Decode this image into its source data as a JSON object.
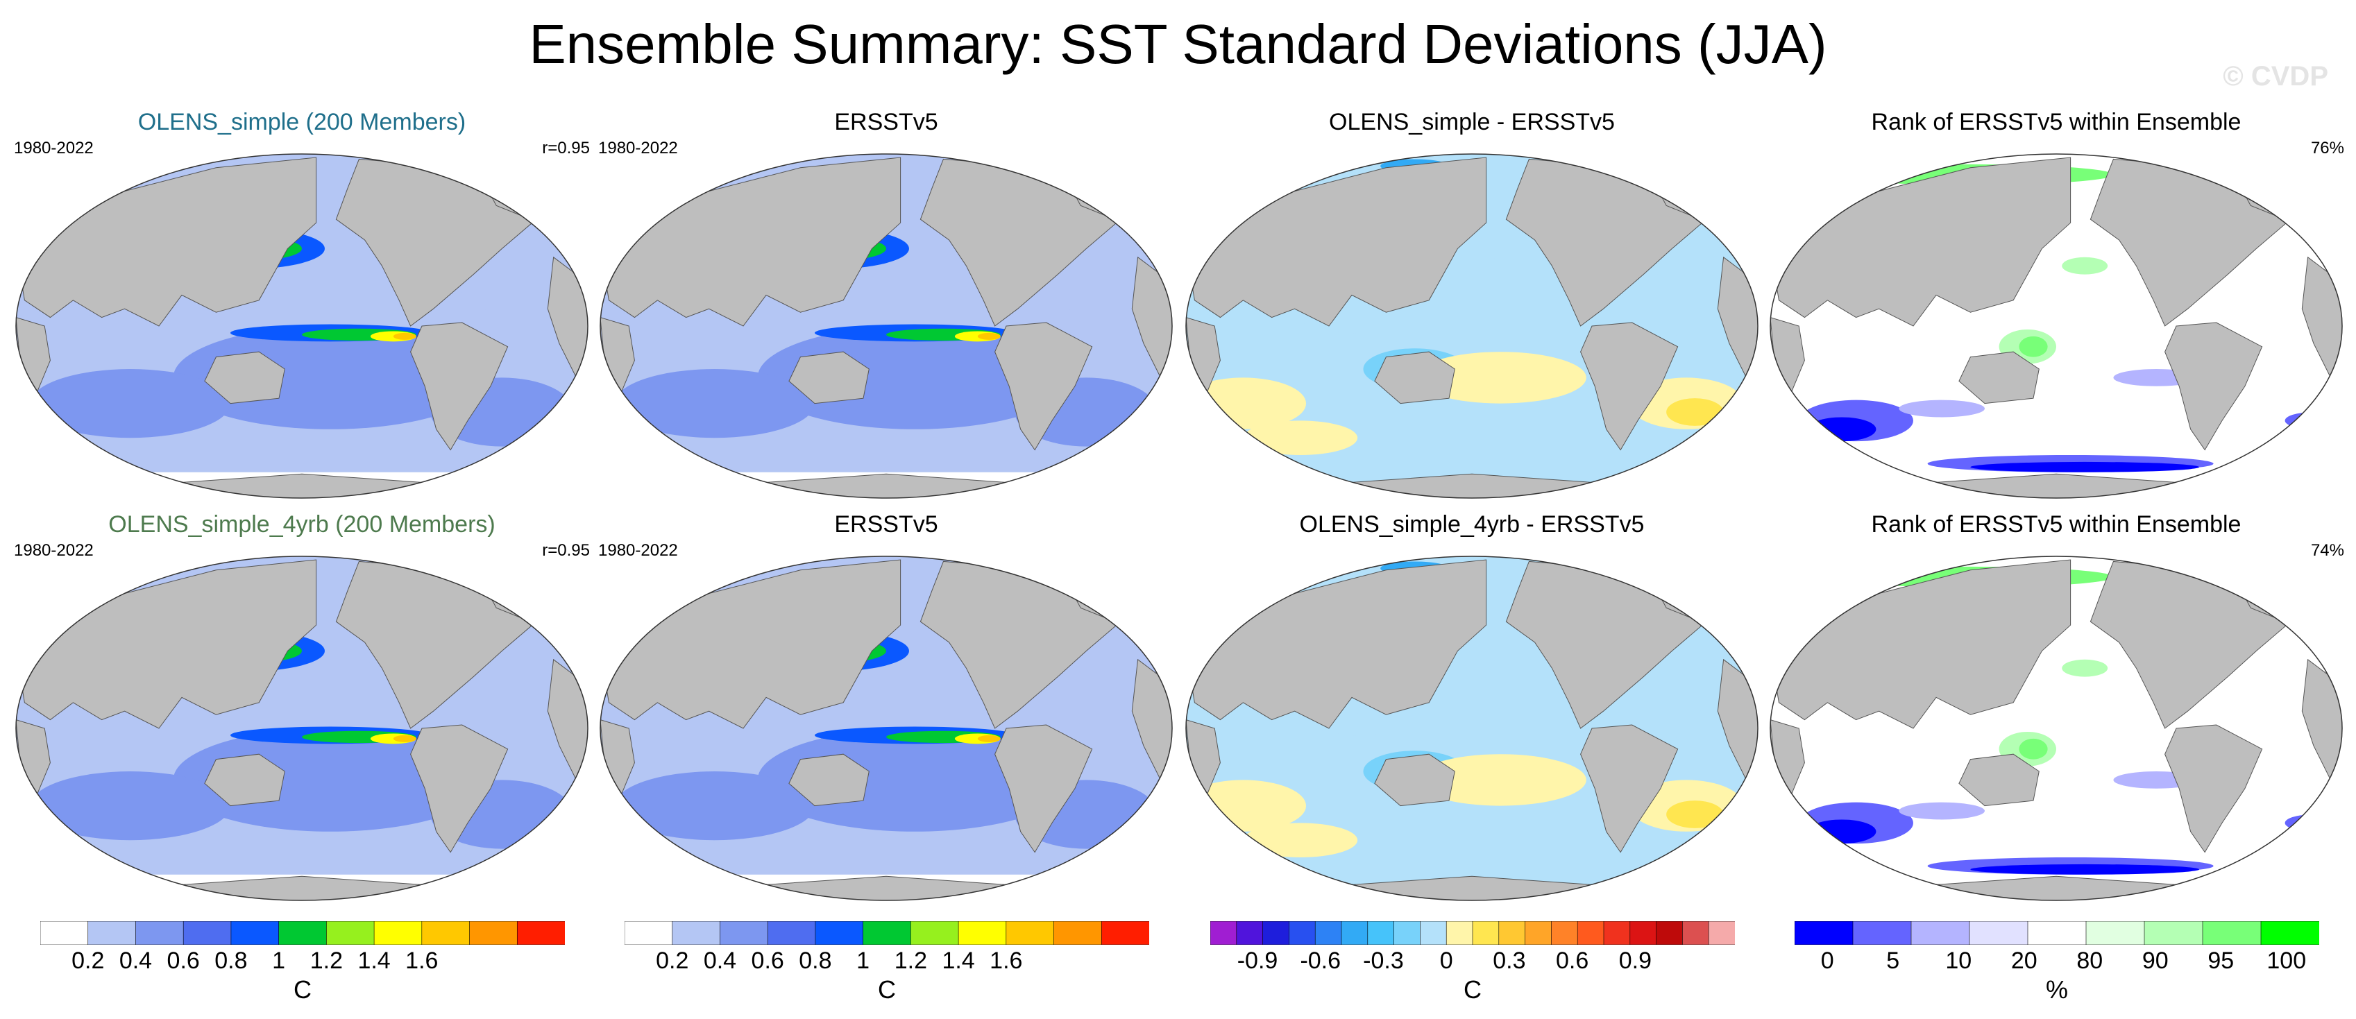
{
  "title": "Ensemble Summary: SST Standard Deviations (JJA)",
  "watermark": "© CVDP",
  "palettes": {
    "sst": [
      "#ffffff",
      "#b4c6f4",
      "#7d97f0",
      "#4f6df0",
      "#0a58ff",
      "#00c832",
      "#96f01e",
      "#ffff00",
      "#ffc800",
      "#ff9600",
      "#ff1e00"
    ],
    "diff": [
      "#a01ed2",
      "#5014dc",
      "#1e1edc",
      "#2850f0",
      "#2d82f5",
      "#32aaf5",
      "#46c3fa",
      "#78d2fa",
      "#b4e1fa",
      "#fff5aa",
      "#ffe650",
      "#ffc832",
      "#ffa528",
      "#ff8228",
      "#ff5a1e",
      "#f0321e",
      "#dc1414",
      "#be0a0a",
      "#dc5050",
      "#f5aaaa"
    ],
    "rank": [
      "#0000ff",
      "#6464ff",
      "#b4b4ff",
      "#e1e1ff",
      "#ffffff",
      "#e1ffe1",
      "#b4ffb4",
      "#78ff78",
      "#00ff00"
    ],
    "land": "#bebebe",
    "title_blue": "#1f6f8b",
    "title_green": "#4d7a4d"
  },
  "panels": [
    {
      "title": "OLENS_simple (200 Members)",
      "title_color": "#1f6f8b",
      "left": "1980-2022",
      "right": "r=0.95",
      "kind": "sst"
    },
    {
      "title": "ERSSTv5",
      "title_color": "#000000",
      "left": "1980-2022",
      "right": "",
      "kind": "sst"
    },
    {
      "title": "OLENS_simple - ERSSTv5",
      "title_color": "#000000",
      "left": "",
      "right": "",
      "kind": "diff"
    },
    {
      "title": "Rank of ERSSTv5 within Ensemble",
      "title_color": "#000000",
      "left": "",
      "right": "76%",
      "kind": "rank"
    },
    {
      "title": "OLENS_simple_4yrb (200 Members)",
      "title_color": "#4d7a4d",
      "left": "1980-2022",
      "right": "r=0.95",
      "kind": "sst"
    },
    {
      "title": "ERSSTv5",
      "title_color": "#000000",
      "left": "1980-2022",
      "right": "",
      "kind": "sst"
    },
    {
      "title": "OLENS_simple_4yrb - ERSSTv5",
      "title_color": "#000000",
      "left": "",
      "right": "",
      "kind": "diff"
    },
    {
      "title": "Rank of ERSSTv5 within Ensemble",
      "title_color": "#000000",
      "left": "",
      "right": "74%",
      "kind": "rank"
    }
  ],
  "chart_data": [
    {
      "type": "heatmap",
      "id": "sst-colorbar",
      "levels": [
        0.2,
        0.4,
        0.6,
        0.8,
        1,
        1.2,
        1.4,
        1.6
      ],
      "tick_labels": [
        "0.2",
        "0.4",
        "0.6",
        "0.8",
        "1",
        "1.2",
        "1.4",
        "1.6"
      ],
      "unit": "C"
    },
    {
      "type": "heatmap",
      "id": "diff-colorbar",
      "levels": [
        -0.9,
        -0.6,
        -0.3,
        0,
        0.3,
        0.6,
        0.9
      ],
      "tick_labels": [
        "-0.9",
        "-0.6",
        "-0.3",
        "0",
        "0.3",
        "0.6",
        "0.9"
      ],
      "unit": "C"
    },
    {
      "type": "heatmap",
      "id": "rank-colorbar",
      "levels": [
        0,
        5,
        10,
        20,
        80,
        90,
        95,
        100
      ],
      "tick_labels": [
        "0",
        "5",
        "10",
        "20",
        "80",
        "90",
        "95",
        "100"
      ],
      "unit": "%"
    }
  ]
}
